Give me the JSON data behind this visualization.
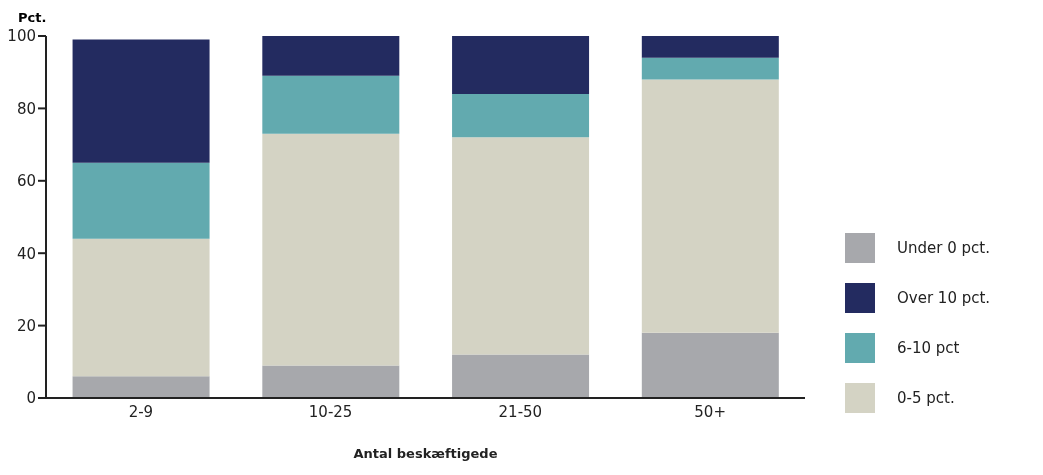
{
  "chart_data": {
    "type": "bar",
    "stacked": true,
    "ylabel": "Pct.",
    "xlabel": "Antal beskæftigede",
    "categories": [
      "2-9",
      "10-25",
      "21-50",
      "50+"
    ],
    "series": [
      {
        "name": "Under 0 pct.",
        "color": "#a7a8ac",
        "values": [
          6,
          9,
          12,
          18
        ]
      },
      {
        "name": "0-5 pct.",
        "color": "#d4d3c4",
        "values": [
          38,
          64,
          60,
          70
        ]
      },
      {
        "name": "6-10 pct",
        "color": "#62aaaf",
        "values": [
          21,
          16,
          12,
          6
        ]
      },
      {
        "name": "Over 10 pct.",
        "color": "#232b60",
        "values": [
          34,
          11,
          16,
          6
        ]
      }
    ],
    "ylim": [
      0,
      100
    ],
    "yticks": [
      0,
      20,
      40,
      60,
      80,
      100
    ],
    "grid": false,
    "legend": "right"
  }
}
